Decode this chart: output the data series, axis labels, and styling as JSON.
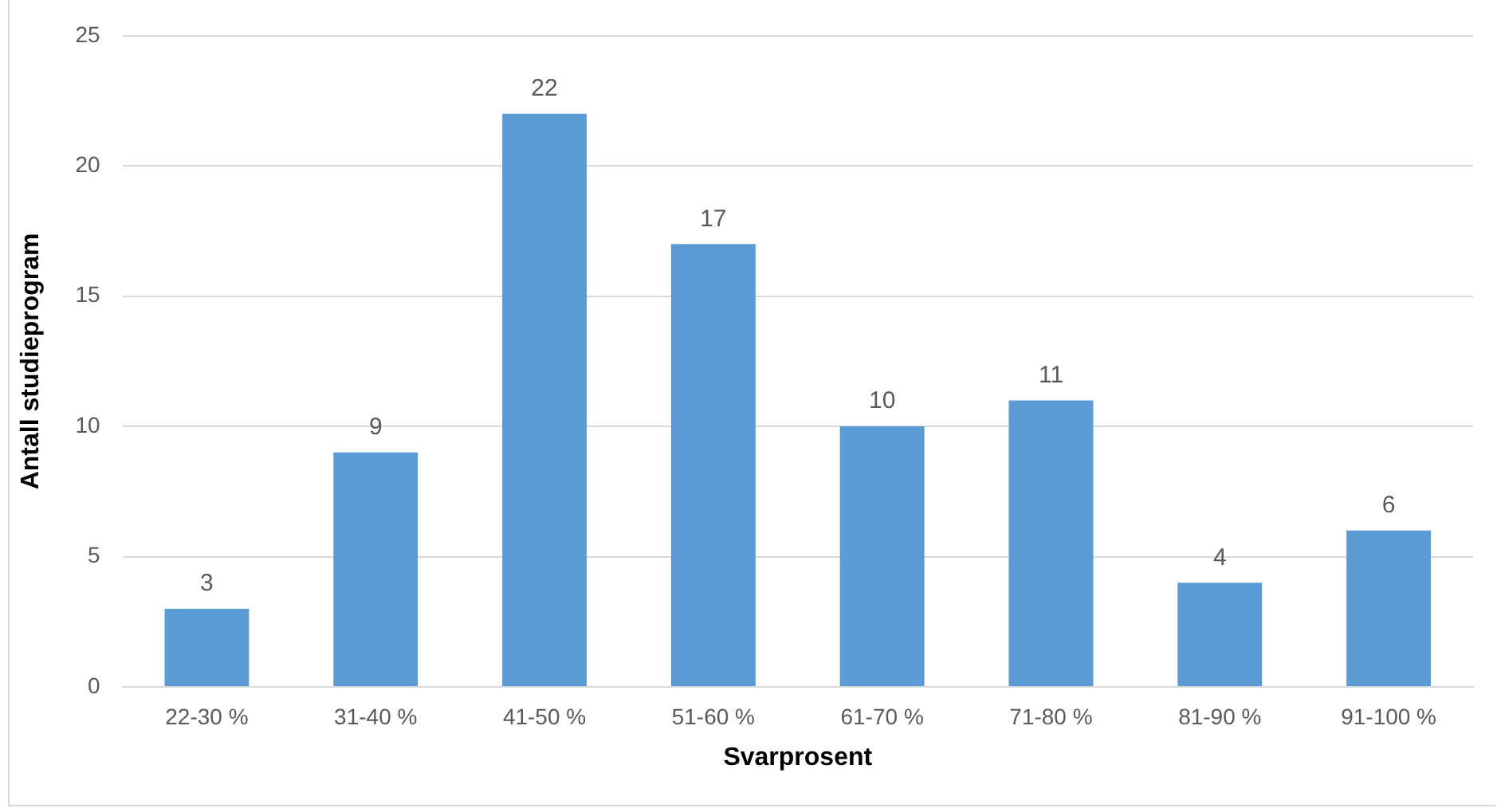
{
  "chart_data": {
    "type": "bar",
    "xlabel": "Svarprosent",
    "ylabel": "Antall studieprogram",
    "categories": [
      "22-30 %",
      "31-40 %",
      "41-50 %",
      "51-60 %",
      "61-70 %",
      "71-80 %",
      "81-90 %",
      "91-100 %"
    ],
    "values": [
      3,
      9,
      22,
      17,
      10,
      11,
      4,
      6
    ],
    "color": "#5b9bd5",
    "ylim": [
      0,
      25
    ],
    "yticks": [
      0,
      5,
      10,
      15,
      20,
      25
    ],
    "grid": "y",
    "data_labels": true,
    "legend": false
  }
}
